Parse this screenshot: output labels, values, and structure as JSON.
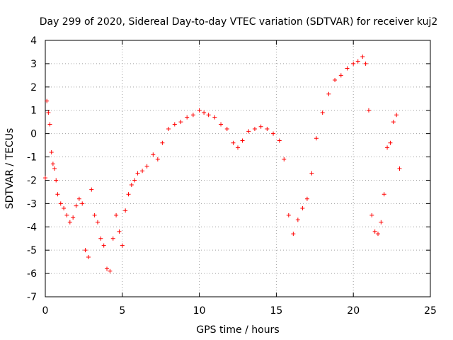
{
  "chart_data": {
    "type": "scatter",
    "title": "Day 299 of 2020, Sidereal Day-to-day VTEC variation (SDTVAR) for receiver kuj2",
    "xlabel": "GPS time / hours",
    "ylabel": "SDTVAR / TECUs",
    "xlim": [
      0,
      25
    ],
    "ylim": [
      -7,
      4
    ],
    "xticks": [
      "0",
      "5",
      "10",
      "15",
      "20",
      "25"
    ],
    "yticks": [
      "-7",
      "-6",
      "-5",
      "-4",
      "-3",
      "-2",
      "-1",
      "0",
      "1",
      "2",
      "3",
      "4"
    ],
    "grid": true,
    "marker": "+",
    "color": "#ff0000",
    "series": [
      {
        "name": "SDTVAR",
        "x": [
          0.0,
          0.1,
          0.2,
          0.3,
          0.4,
          0.5,
          0.6,
          0.7,
          0.8,
          1.0,
          1.2,
          1.4,
          1.6,
          1.8,
          2.0,
          2.2,
          2.4,
          2.6,
          2.8,
          3.0,
          3.2,
          3.4,
          3.6,
          3.8,
          4.0,
          4.2,
          4.4,
          4.6,
          4.8,
          5.0,
          5.2,
          5.4,
          5.6,
          5.8,
          6.0,
          6.3,
          6.6,
          7.0,
          7.3,
          7.6,
          8.0,
          8.4,
          8.8,
          9.2,
          9.6,
          10.0,
          10.3,
          10.6,
          11.0,
          11.4,
          11.8,
          12.2,
          12.5,
          12.8,
          13.2,
          13.6,
          14.0,
          14.4,
          14.8,
          15.2,
          15.5,
          15.8,
          16.1,
          16.4,
          16.7,
          17.0,
          17.3,
          17.6,
          18.0,
          18.4,
          18.8,
          19.2,
          19.6,
          20.0,
          20.3,
          20.6,
          20.8,
          21.0,
          21.2,
          21.4,
          21.6,
          21.8,
          22.0,
          22.2,
          22.4,
          22.6,
          22.8,
          23.0
        ],
        "y": [
          -1.9,
          1.4,
          0.9,
          0.4,
          -0.8,
          -1.3,
          -1.5,
          -2.0,
          -2.6,
          -3.0,
          -3.2,
          -3.5,
          -3.8,
          -3.6,
          -3.1,
          -2.8,
          -3.0,
          -5.0,
          -5.3,
          -2.4,
          -3.5,
          -3.8,
          -4.5,
          -4.8,
          -5.8,
          -5.9,
          -4.5,
          -3.5,
          -4.2,
          -4.8,
          -3.3,
          -2.6,
          -2.2,
          -2.0,
          -1.7,
          -1.6,
          -1.4,
          -0.9,
          -1.1,
          -0.4,
          0.2,
          0.4,
          0.5,
          0.7,
          0.8,
          1.0,
          0.9,
          0.8,
          0.7,
          0.4,
          0.2,
          -0.4,
          -0.6,
          -0.3,
          0.1,
          0.2,
          0.3,
          0.2,
          0.0,
          -0.3,
          -1.1,
          -3.5,
          -4.3,
          -3.7,
          -3.2,
          -2.8,
          -1.7,
          -0.2,
          0.9,
          1.7,
          2.3,
          2.5,
          2.8,
          3.0,
          3.1,
          3.3,
          3.0,
          1.0,
          -3.5,
          -4.2,
          -4.3,
          -3.8,
          -2.6,
          -0.6,
          -0.4,
          0.5,
          0.8,
          -1.5
        ]
      }
    ]
  }
}
